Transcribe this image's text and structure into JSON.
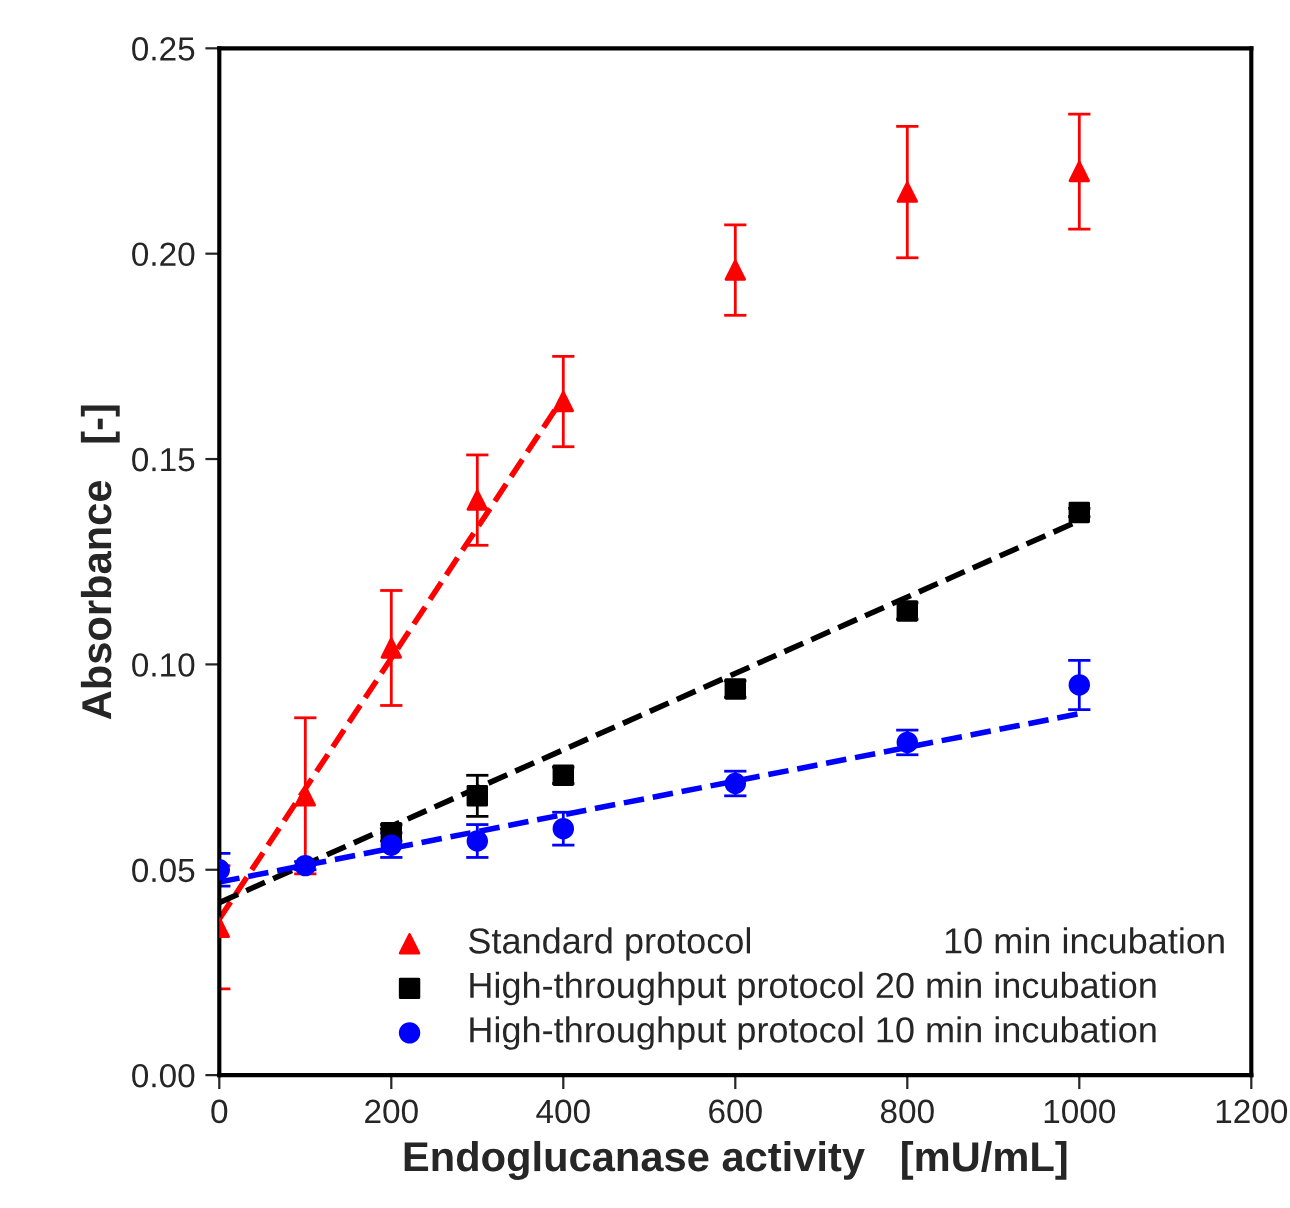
{
  "chart_data": {
    "type": "scatter",
    "xlabel": "Endoglucanase activity   [mU/mL]",
    "ylabel": "Absorbance   [-]",
    "x": [
      0,
      100,
      200,
      300,
      400,
      600,
      800,
      1000
    ],
    "series": [
      {
        "name": "Standard protocol                   10 min incubation",
        "color": "#ff0000",
        "marker": "triangle",
        "values": [
          0.036,
          0.068,
          0.104,
          0.14,
          0.164,
          0.196,
          0.215,
          0.22
        ],
        "errors": [
          0.015,
          0.019,
          0.014,
          0.011,
          0.011,
          0.011,
          0.016,
          0.014
        ]
      },
      {
        "name": "High-throughput protocol 20 min incubation",
        "color": "#000000",
        "marker": "square",
        "values": [
          null,
          null,
          0.059,
          0.068,
          0.073,
          0.094,
          0.113,
          0.137
        ],
        "errors": [
          null,
          null,
          0.002,
          0.005,
          0.002,
          0.002,
          0.002,
          0.001
        ]
      },
      {
        "name": "High-throughput protocol 10 min incubation",
        "color": "#0000ff",
        "marker": "circle",
        "values": [
          0.05,
          0.051,
          0.056,
          0.057,
          0.06,
          0.071,
          0.081,
          0.095
        ],
        "errors": [
          0.004,
          0.001,
          0.003,
          0.004,
          0.004,
          0.003,
          0.003,
          0.006
        ]
      },
      {
        "type": "line",
        "color": "#ff0000",
        "line_style": "dashed",
        "x": [
          0,
          400
        ],
        "values": [
          0.038,
          0.165
        ]
      },
      {
        "type": "line",
        "color": "#000000",
        "line_style": "dashed",
        "x": [
          0,
          1000
        ],
        "values": [
          0.042,
          0.135
        ]
      },
      {
        "type": "line",
        "color": "#0000ff",
        "line_style": "dashed",
        "x": [
          0,
          1000
        ],
        "values": [
          0.047,
          0.088
        ]
      }
    ],
    "xlim": [
      0,
      1200
    ],
    "xticks": [
      0,
      200,
      400,
      600,
      800,
      1000,
      1200
    ],
    "ylim": [
      0,
      0.25
    ],
    "yticks": [
      {
        "value": 0,
        "label": "0.00"
      },
      {
        "value": 0.05,
        "label": "0.05"
      },
      {
        "value": 0.1,
        "label": "0.10"
      },
      {
        "value": 0.15,
        "label": "0.15"
      },
      {
        "value": 0.2,
        "label": "0.20"
      },
      {
        "value": 0.25,
        "label": "0.25"
      }
    ],
    "grid": false,
    "legend": "bottom right"
  }
}
